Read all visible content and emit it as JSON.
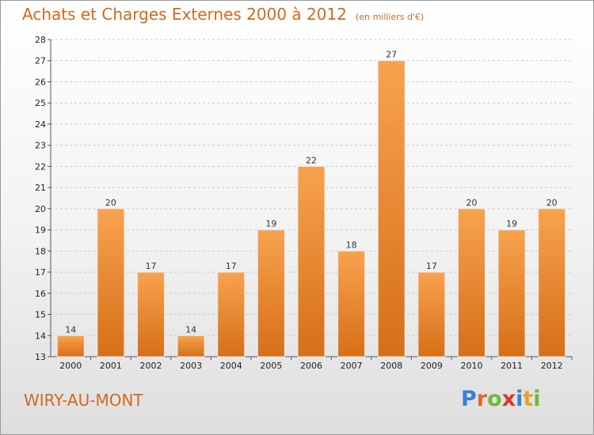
{
  "title": "Achats et Charges Externes 2000 à 2012",
  "subtitle": "(en milliers d'€)",
  "location": "WIRY-AU-MONT",
  "logo": {
    "text": "Proxiti",
    "letters": [
      {
        "ch": "P",
        "color": "#3a7fd5"
      },
      {
        "ch": "r",
        "color": "#e0672b"
      },
      {
        "ch": "o",
        "color": "#72b83d"
      },
      {
        "ch": "x",
        "color": "#d8352a"
      },
      {
        "ch": "i",
        "color": "#3a7fd5"
      },
      {
        "ch": "t",
        "color": "#e8a22a"
      },
      {
        "ch": "i",
        "color": "#72b83d"
      }
    ]
  },
  "colors": {
    "accent": "#d2691e",
    "bar_top": "#f8a24e",
    "bar_bottom": "#d66f18",
    "grid": "#cccccc"
  },
  "chart_data": {
    "type": "bar",
    "categories": [
      "2000",
      "2001",
      "2002",
      "2003",
      "2004",
      "2005",
      "2006",
      "2007",
      "2008",
      "2009",
      "2010",
      "2011",
      "2012"
    ],
    "values": [
      14,
      20,
      17,
      14,
      17,
      19,
      22,
      18,
      27,
      17,
      20,
      19,
      20
    ],
    "ylim": [
      13,
      28
    ],
    "yticks": [
      13,
      14,
      15,
      16,
      17,
      18,
      19,
      20,
      21,
      22,
      23,
      24,
      25,
      26,
      27,
      28
    ],
    "grid": true,
    "data_labels": true
  }
}
